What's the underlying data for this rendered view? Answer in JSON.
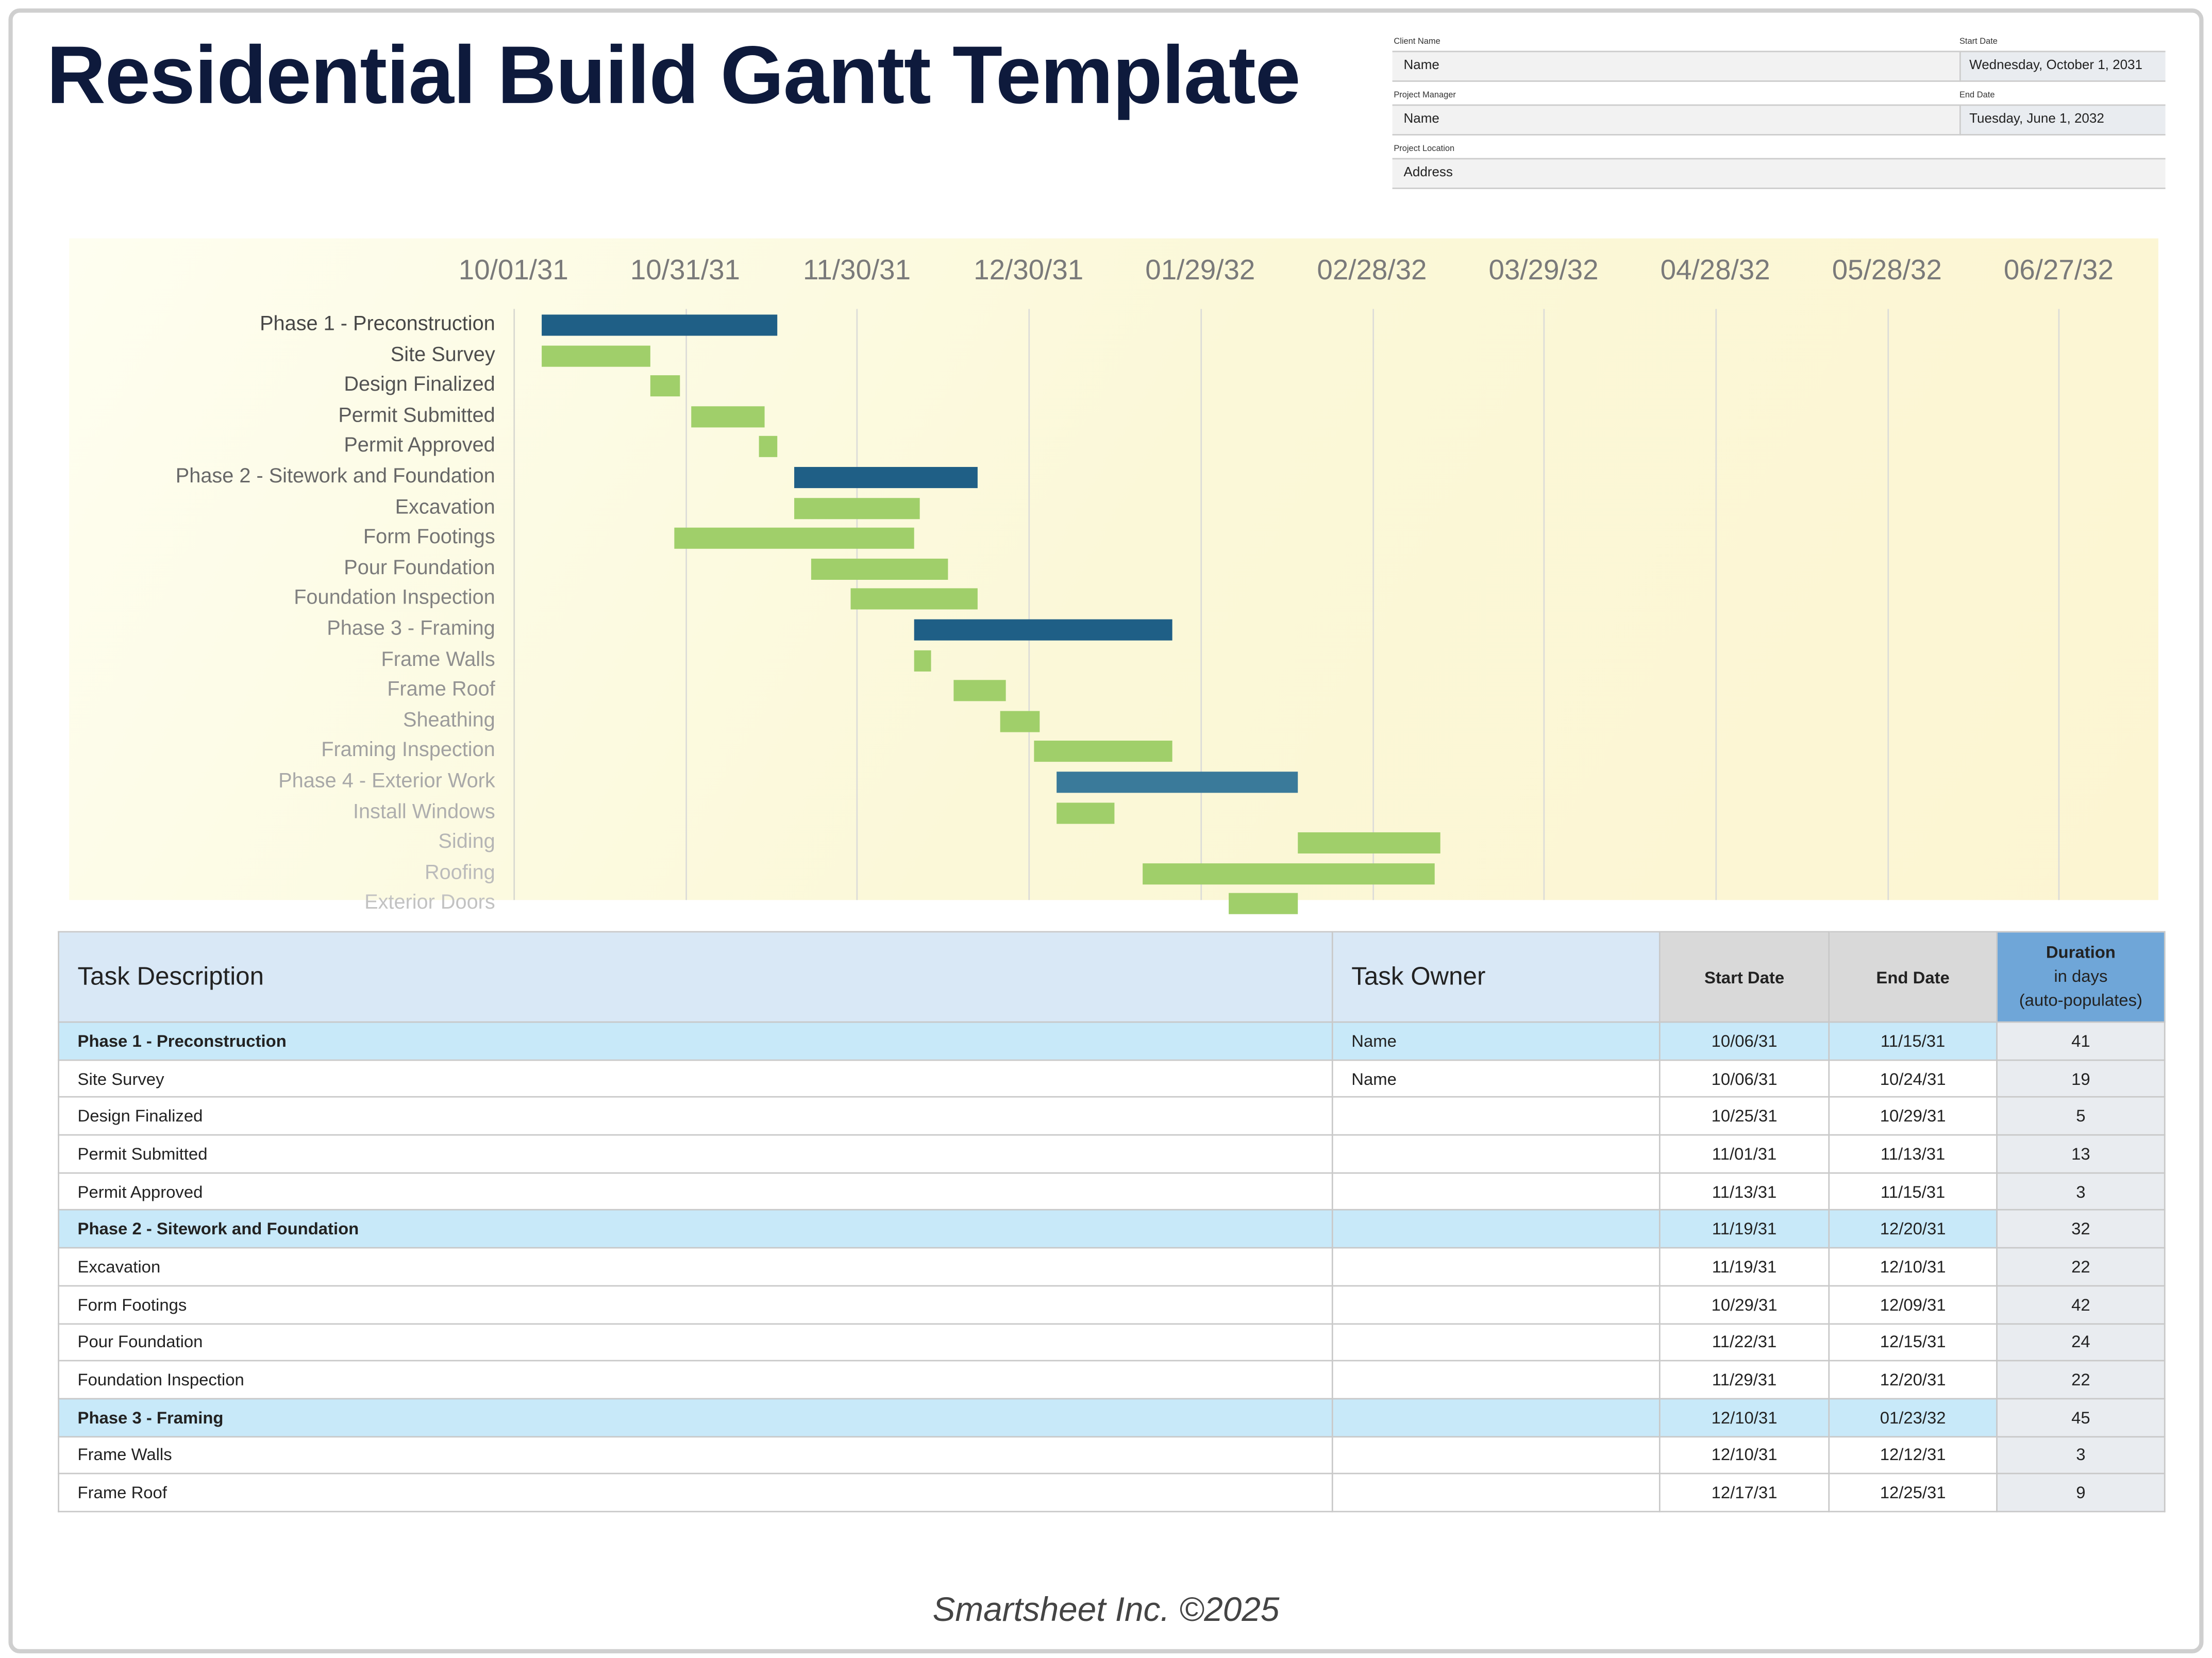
{
  "title": "Residential Build Gantt Template",
  "info": {
    "client_name_label": "Client Name",
    "client_name": "Name",
    "start_date_label": "Start Date",
    "start_date": "Wednesday, October 1, 2031",
    "project_manager_label": "Project Manager",
    "project_manager": "Name",
    "end_date_label": "End Date",
    "end_date": "Tuesday, June 1, 2032",
    "project_location_label": "Project Location",
    "project_location": "Address"
  },
  "chart_data": {
    "type": "gantt",
    "x_ticks": [
      "10/01/31",
      "10/31/31",
      "11/30/31",
      "12/30/31",
      "01/29/32",
      "02/28/32",
      "03/29/32",
      "04/28/32",
      "05/28/32",
      "06/27/32"
    ],
    "grid": true,
    "colors": {
      "phase": "#1f5f86",
      "task": "#a0cf6a"
    },
    "tasks": [
      {
        "label": "Phase 1 - Preconstruction",
        "start": "10/06/31",
        "end": "11/15/31",
        "phase": true
      },
      {
        "label": "Site Survey",
        "start": "10/06/31",
        "end": "10/24/31"
      },
      {
        "label": "Design Finalized",
        "start": "10/25/31",
        "end": "10/29/31"
      },
      {
        "label": "Permit Submitted",
        "start": "11/01/31",
        "end": "11/13/31"
      },
      {
        "label": "Permit Approved",
        "start": "11/13/31",
        "end": "11/15/31"
      },
      {
        "label": "Phase 2 - Sitework and Foundation",
        "start": "11/19/31",
        "end": "12/20/31",
        "phase": true
      },
      {
        "label": "Excavation",
        "start": "11/19/31",
        "end": "12/10/31"
      },
      {
        "label": "Form Footings",
        "start": "10/29/31",
        "end": "12/09/31"
      },
      {
        "label": "Pour Foundation",
        "start": "11/22/31",
        "end": "12/15/31"
      },
      {
        "label": "Foundation Inspection",
        "start": "11/29/31",
        "end": "12/20/31"
      },
      {
        "label": "Phase 3 - Framing",
        "start": "12/10/31",
        "end": "01/23/32",
        "phase": true
      },
      {
        "label": "Frame Walls",
        "start": "12/10/31",
        "end": "12/12/31"
      },
      {
        "label": "Frame Roof",
        "start": "12/17/31",
        "end": "12/25/31"
      },
      {
        "label": "Sheathing",
        "start": "12/25/31",
        "end": "12/31/31"
      },
      {
        "label": "Framing Inspection",
        "start": "12/31/31",
        "end": "01/23/32"
      },
      {
        "label": "Phase 4 - Exterior Work",
        "start": "01/04/32",
        "end": "02/14/32",
        "phase": true
      },
      {
        "label": "Install Windows",
        "start": "01/04/32",
        "end": "01/13/32"
      },
      {
        "label": "Siding",
        "start": "02/15/32",
        "end": "03/10/32"
      },
      {
        "label": "Roofing",
        "start": "01/19/32",
        "end": "03/09/32"
      },
      {
        "label": "Exterior Doors",
        "start": "02/03/32",
        "end": "02/14/32"
      }
    ]
  },
  "table": {
    "headers": {
      "desc": "Task Description",
      "owner": "Task Owner",
      "start": "Start Date",
      "end": "End Date",
      "dur1": "Duration",
      "dur2": "in days",
      "dur3": "(auto-populates)"
    },
    "rows": [
      {
        "desc": "Phase 1 - Preconstruction",
        "owner": "Name",
        "start": "10/06/31",
        "end": "11/15/31",
        "dur": "41",
        "phase": true
      },
      {
        "desc": "Site Survey",
        "owner": "Name",
        "start": "10/06/31",
        "end": "10/24/31",
        "dur": "19"
      },
      {
        "desc": "Design Finalized",
        "owner": "",
        "start": "10/25/31",
        "end": "10/29/31",
        "dur": "5"
      },
      {
        "desc": "Permit Submitted",
        "owner": "",
        "start": "11/01/31",
        "end": "11/13/31",
        "dur": "13"
      },
      {
        "desc": "Permit Approved",
        "owner": "",
        "start": "11/13/31",
        "end": "11/15/31",
        "dur": "3"
      },
      {
        "desc": "Phase 2 - Sitework and Foundation",
        "owner": "",
        "start": "11/19/31",
        "end": "12/20/31",
        "dur": "32",
        "phase": true
      },
      {
        "desc": "Excavation",
        "owner": "",
        "start": "11/19/31",
        "end": "12/10/31",
        "dur": "22"
      },
      {
        "desc": "Form Footings",
        "owner": "",
        "start": "10/29/31",
        "end": "12/09/31",
        "dur": "42"
      },
      {
        "desc": "Pour Foundation",
        "owner": "",
        "start": "11/22/31",
        "end": "12/15/31",
        "dur": "24"
      },
      {
        "desc": "Foundation Inspection",
        "owner": "",
        "start": "11/29/31",
        "end": "12/20/31",
        "dur": "22"
      },
      {
        "desc": "Phase 3 - Framing",
        "owner": "",
        "start": "12/10/31",
        "end": "01/23/32",
        "dur": "45",
        "phase": true
      },
      {
        "desc": "Frame Walls",
        "owner": "",
        "start": "12/10/31",
        "end": "12/12/31",
        "dur": "3"
      },
      {
        "desc": "Frame Roof",
        "owner": "",
        "start": "12/17/31",
        "end": "12/25/31",
        "dur": "9"
      }
    ]
  },
  "footer": "Smartsheet Inc. ©2025"
}
